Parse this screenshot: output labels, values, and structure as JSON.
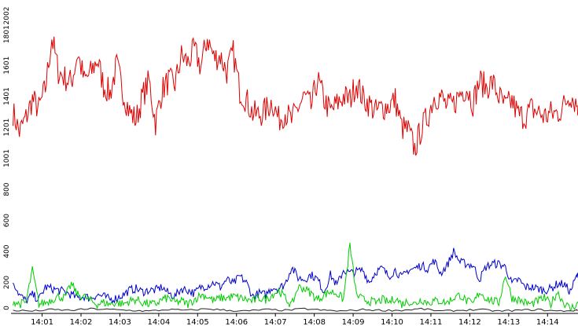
{
  "chart_data": {
    "type": "line",
    "title": "",
    "xlabel": "",
    "ylabel": "",
    "ylim": [
      0,
      2002
    ],
    "y_ticks": [
      "0",
      "200",
      "400",
      "600",
      "800",
      "1001",
      "1201",
      "1401",
      "1601",
      "1801",
      "2002"
    ],
    "x_ticks": [
      "14:01",
      "14:02",
      "14:03",
      "14:04",
      "14:05",
      "14:06",
      "14:07",
      "14:08",
      "14:09",
      "14:10",
      "14:11",
      "14:12",
      "14:13",
      "14:14"
    ],
    "xlim": [
      "14:00:12",
      "14:14:47"
    ],
    "grid": false,
    "legend": "none",
    "series": [
      {
        "color": "#dd0000",
        "x": [
          "14:00:15",
          "14:00:25",
          "14:00:35",
          "14:00:45",
          "14:00:55",
          "14:01:05",
          "14:01:15",
          "14:01:25",
          "14:01:35",
          "14:01:45",
          "14:01:55",
          "14:02:05",
          "14:02:15",
          "14:02:25",
          "14:02:35",
          "14:02:45",
          "14:02:55",
          "14:03:05",
          "14:03:15",
          "14:03:25",
          "14:03:35",
          "14:03:45",
          "14:03:55",
          "14:04:05",
          "14:04:15",
          "14:04:25",
          "14:04:35",
          "14:04:45",
          "14:04:55",
          "14:05:05",
          "14:05:15",
          "14:05:25",
          "14:05:35",
          "14:05:45",
          "14:05:55",
          "14:06:05",
          "14:06:15",
          "14:06:25",
          "14:06:35",
          "14:06:45",
          "14:06:55",
          "14:07:05",
          "14:07:15",
          "14:07:25",
          "14:07:35",
          "14:07:45",
          "14:07:55",
          "14:08:05",
          "14:08:15",
          "14:08:25",
          "14:08:35",
          "14:08:45",
          "14:08:55",
          "14:09:05",
          "14:09:15",
          "14:09:25",
          "14:09:35",
          "14:09:45",
          "14:09:55",
          "14:10:05",
          "14:10:15",
          "14:10:25",
          "14:10:35",
          "14:10:45",
          "14:10:55",
          "14:11:05",
          "14:11:15",
          "14:11:25",
          "14:11:35",
          "14:11:45",
          "14:11:55",
          "14:12:05",
          "14:12:15",
          "14:12:25",
          "14:12:35",
          "14:12:45",
          "14:12:55",
          "14:13:05",
          "14:13:15",
          "14:13:25",
          "14:13:35",
          "14:13:45",
          "14:13:55",
          "14:14:05",
          "14:14:15",
          "14:14:25",
          "14:14:35",
          "14:14:45"
        ],
        "values": [
          1300,
          1170,
          1260,
          1380,
          1320,
          1450,
          1780,
          1560,
          1520,
          1490,
          1680,
          1500,
          1550,
          1640,
          1470,
          1420,
          1600,
          1430,
          1300,
          1250,
          1400,
          1500,
          1230,
          1440,
          1500,
          1480,
          1660,
          1620,
          1700,
          1590,
          1780,
          1650,
          1660,
          1560,
          1680,
          1440,
          1380,
          1290,
          1280,
          1310,
          1370,
          1250,
          1300,
          1240,
          1330,
          1400,
          1330,
          1510,
          1380,
          1300,
          1350,
          1400,
          1380,
          1490,
          1390,
          1350,
          1300,
          1330,
          1340,
          1380,
          1200,
          1180,
          1060,
          1190,
          1270,
          1400,
          1400,
          1330,
          1350,
          1420,
          1460,
          1360,
          1500,
          1460,
          1490,
          1400,
          1330,
          1370,
          1280,
          1270,
          1320,
          1300,
          1270,
          1290,
          1290,
          1340,
          1420,
          1350
        ]
      },
      {
        "color": "#0000cc",
        "x": [
          "14:00:15",
          "14:00:25",
          "14:00:35",
          "14:00:45",
          "14:00:55",
          "14:01:05",
          "14:01:15",
          "14:01:25",
          "14:01:35",
          "14:01:45",
          "14:01:55",
          "14:02:05",
          "14:02:15",
          "14:02:25",
          "14:02:35",
          "14:02:45",
          "14:02:55",
          "14:03:05",
          "14:03:15",
          "14:03:25",
          "14:03:35",
          "14:03:45",
          "14:03:55",
          "14:04:05",
          "14:04:15",
          "14:04:25",
          "14:04:35",
          "14:04:45",
          "14:04:55",
          "14:05:05",
          "14:05:15",
          "14:05:25",
          "14:05:35",
          "14:05:45",
          "14:05:55",
          "14:06:05",
          "14:06:15",
          "14:06:25",
          "14:06:35",
          "14:06:45",
          "14:06:55",
          "14:07:05",
          "14:07:15",
          "14:07:25",
          "14:07:35",
          "14:07:45",
          "14:07:55",
          "14:08:05",
          "14:08:15",
          "14:08:25",
          "14:08:35",
          "14:08:45",
          "14:08:55",
          "14:09:05",
          "14:09:15",
          "14:09:25",
          "14:09:35",
          "14:09:45",
          "14:09:55",
          "14:10:05",
          "14:10:15",
          "14:10:25",
          "14:10:35",
          "14:10:45",
          "14:10:55",
          "14:11:05",
          "14:11:15",
          "14:11:25",
          "14:11:35",
          "14:11:45",
          "14:11:55",
          "14:12:05",
          "14:12:15",
          "14:12:25",
          "14:12:35",
          "14:12:45",
          "14:12:55",
          "14:13:05",
          "14:13:15",
          "14:13:25",
          "14:13:35",
          "14:13:45",
          "14:13:55",
          "14:14:05",
          "14:14:15",
          "14:14:25",
          "14:14:35",
          "14:14:45"
        ],
        "values": [
          210,
          120,
          80,
          120,
          90,
          170,
          160,
          150,
          140,
          120,
          100,
          110,
          100,
          120,
          110,
          90,
          100,
          120,
          150,
          160,
          140,
          150,
          150,
          170,
          130,
          110,
          160,
          150,
          130,
          170,
          180,
          200,
          170,
          220,
          190,
          240,
          200,
          110,
          130,
          120,
          170,
          160,
          190,
          300,
          230,
          220,
          250,
          220,
          140,
          250,
          180,
          280,
          260,
          270,
          280,
          200,
          270,
          290,
          240,
          280,
          230,
          280,
          290,
          310,
          290,
          340,
          260,
          310,
          400,
          330,
          320,
          310,
          220,
          300,
          320,
          320,
          300,
          190,
          220,
          170,
          170,
          160,
          150,
          160,
          190,
          190,
          140,
          240
        ]
      },
      {
        "color": "#00cc00",
        "x": [
          "14:00:15",
          "14:00:25",
          "14:00:35",
          "14:00:45",
          "14:00:55",
          "14:01:05",
          "14:01:15",
          "14:01:25",
          "14:01:35",
          "14:01:45",
          "14:01:55",
          "14:02:05",
          "14:02:15",
          "14:02:25",
          "14:02:35",
          "14:02:45",
          "14:02:55",
          "14:03:05",
          "14:03:15",
          "14:03:25",
          "14:03:35",
          "14:03:45",
          "14:03:55",
          "14:04:05",
          "14:04:15",
          "14:04:25",
          "14:04:35",
          "14:04:45",
          "14:04:55",
          "14:05:05",
          "14:05:15",
          "14:05:25",
          "14:05:35",
          "14:05:45",
          "14:05:55",
          "14:06:05",
          "14:06:15",
          "14:06:25",
          "14:06:35",
          "14:06:45",
          "14:06:55",
          "14:07:05",
          "14:07:15",
          "14:07:25",
          "14:07:35",
          "14:07:45",
          "14:07:55",
          "14:08:05",
          "14:08:15",
          "14:08:25",
          "14:08:35",
          "14:08:45",
          "14:08:55",
          "14:09:05",
          "14:09:15",
          "14:09:25",
          "14:09:35",
          "14:09:45",
          "14:09:55",
          "14:10:05",
          "14:10:15",
          "14:10:25",
          "14:10:35",
          "14:10:45",
          "14:10:55",
          "14:11:05",
          "14:11:15",
          "14:11:25",
          "14:11:35",
          "14:11:45",
          "14:11:55",
          "14:12:05",
          "14:12:15",
          "14:12:25",
          "14:12:35",
          "14:12:45",
          "14:12:55",
          "14:13:05",
          "14:13:15",
          "14:13:25",
          "14:13:35",
          "14:13:45",
          "14:13:55",
          "14:14:05",
          "14:14:15",
          "14:14:25",
          "14:14:35",
          "14:14:45"
        ],
        "values": [
          80,
          60,
          70,
          280,
          60,
          70,
          90,
          110,
          100,
          190,
          120,
          110,
          80,
          60,
          70,
          60,
          70,
          60,
          80,
          90,
          70,
          60,
          60,
          90,
          100,
          70,
          80,
          60,
          90,
          120,
          110,
          80,
          100,
          100,
          110,
          100,
          90,
          80,
          100,
          90,
          120,
          150,
          100,
          50,
          170,
          160,
          130,
          90,
          120,
          140,
          130,
          90,
          440,
          120,
          90,
          80,
          70,
          90,
          70,
          100,
          60,
          80,
          60,
          90,
          70,
          80,
          80,
          70,
          100,
          120,
          80,
          60,
          140,
          100,
          80,
          70,
          250,
          100,
          90,
          70,
          60,
          80,
          100,
          60,
          140,
          70,
          30,
          60
        ]
      },
      {
        "color": "#222222",
        "x": [
          "14:00:15",
          "14:00:45",
          "14:01:15",
          "14:01:45",
          "14:02:15",
          "14:02:45",
          "14:03:15",
          "14:03:45",
          "14:04:15",
          "14:04:45",
          "14:05:15",
          "14:05:45",
          "14:06:15",
          "14:06:45",
          "14:07:15",
          "14:07:45",
          "14:08:15",
          "14:08:45",
          "14:09:15",
          "14:09:45",
          "14:10:15",
          "14:10:45",
          "14:11:15",
          "14:11:45",
          "14:12:15",
          "14:12:45",
          "14:13:15",
          "14:13:45",
          "14:14:15",
          "14:14:45"
        ],
        "values": [
          20,
          15,
          25,
          20,
          30,
          25,
          20,
          15,
          25,
          20,
          30,
          20,
          15,
          25,
          20,
          30,
          20,
          15,
          25,
          20,
          20,
          30,
          15,
          20,
          25,
          15,
          20,
          25,
          15,
          20
        ]
      }
    ]
  }
}
